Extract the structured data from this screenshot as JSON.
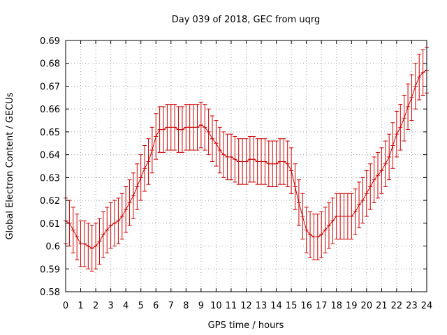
{
  "colors": {
    "series": "#cc0000",
    "grid": "#a0a0a0",
    "frame": "#000000"
  },
  "chart_data": {
    "type": "line",
    "title": "Day 039 of 2018, GEC from uqrg",
    "xlabel": "GPS time / hours",
    "ylabel": "Global Electron Content / GECUs",
    "xlim": [
      0,
      24
    ],
    "ylim": [
      0.58,
      0.69
    ],
    "xticks": [
      "0",
      "1",
      "2",
      "3",
      "4",
      "5",
      "6",
      "7",
      "8",
      "9",
      "10",
      "11",
      "12",
      "13",
      "14",
      "15",
      "16",
      "17",
      "18",
      "19",
      "20",
      "21",
      "22",
      "23",
      "24"
    ],
    "yticks": [
      "0.58",
      "0.59",
      "0.6",
      "0.61",
      "0.62",
      "0.63",
      "0.64",
      "0.65",
      "0.66",
      "0.67",
      "0.68",
      "0.69"
    ],
    "grid": true,
    "error_bars": true,
    "series": [
      {
        "x": [
          0,
          0.25,
          0.5,
          0.75,
          1,
          1.25,
          1.5,
          1.75,
          2,
          2.25,
          2.5,
          2.75,
          3,
          3.25,
          3.5,
          3.75,
          4,
          4.25,
          4.5,
          4.75,
          5,
          5.25,
          5.5,
          5.75,
          6,
          6.25,
          6.5,
          6.75,
          7,
          7.25,
          7.5,
          7.75,
          8,
          8.25,
          8.5,
          8.75,
          9,
          9.25,
          9.5,
          9.75,
          10,
          10.25,
          10.5,
          10.75,
          11,
          11.25,
          11.5,
          11.75,
          12,
          12.25,
          12.5,
          12.75,
          13,
          13.25,
          13.5,
          13.75,
          14,
          14.25,
          14.5,
          14.75,
          15,
          15.25,
          15.5,
          15.75,
          16,
          16.25,
          16.5,
          16.75,
          17,
          17.25,
          17.5,
          17.75,
          18,
          18.25,
          18.5,
          18.75,
          19,
          19.25,
          19.5,
          19.75,
          20,
          20.25,
          20.5,
          20.75,
          21,
          21.25,
          21.5,
          21.75,
          22,
          22.25,
          22.5,
          22.75,
          23,
          23.25,
          23.5,
          23.75,
          24
        ],
        "y": [
          0.611,
          0.61,
          0.607,
          0.604,
          0.601,
          0.601,
          0.6,
          0.599,
          0.6,
          0.602,
          0.605,
          0.607,
          0.609,
          0.61,
          0.611,
          0.613,
          0.616,
          0.619,
          0.622,
          0.626,
          0.63,
          0.634,
          0.637,
          0.642,
          0.648,
          0.651,
          0.651,
          0.652,
          0.652,
          0.652,
          0.651,
          0.651,
          0.652,
          0.652,
          0.652,
          0.652,
          0.653,
          0.652,
          0.65,
          0.647,
          0.645,
          0.642,
          0.64,
          0.639,
          0.639,
          0.638,
          0.637,
          0.637,
          0.637,
          0.638,
          0.638,
          0.637,
          0.637,
          0.637,
          0.636,
          0.636,
          0.636,
          0.637,
          0.637,
          0.636,
          0.633,
          0.626,
          0.619,
          0.613,
          0.607,
          0.605,
          0.604,
          0.604,
          0.605,
          0.607,
          0.609,
          0.611,
          0.613,
          0.613,
          0.613,
          0.613,
          0.613,
          0.615,
          0.618,
          0.62,
          0.623,
          0.626,
          0.629,
          0.631,
          0.633,
          0.636,
          0.639,
          0.644,
          0.649,
          0.652,
          0.656,
          0.661,
          0.665,
          0.67,
          0.674,
          0.676,
          0.677
        ],
        "yerr": 0.01
      }
    ]
  }
}
